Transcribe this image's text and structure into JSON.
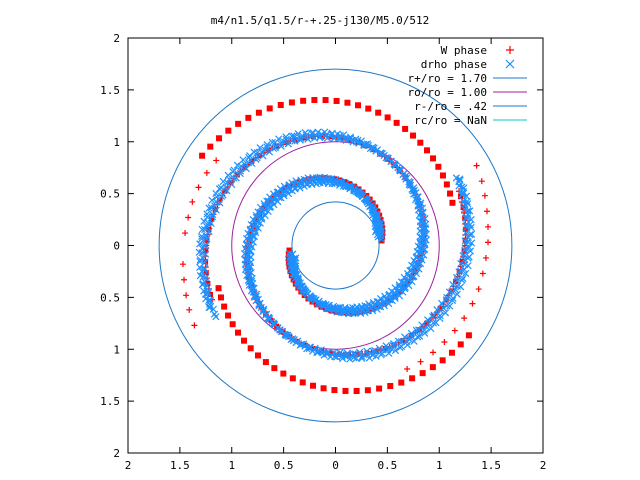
{
  "chart_data": {
    "type": "scatter",
    "title": "m4/n1.5/q1.5/r-+.25-j130/M5.0/512",
    "xlabel": "",
    "ylabel": "",
    "xlim": [
      -2,
      2
    ],
    "ylim": [
      -2,
      2
    ],
    "xticks": [
      -2,
      -1.5,
      -1,
      -0.5,
      0,
      0.5,
      1,
      1.5,
      2
    ],
    "yticks": [
      -2,
      -1.5,
      -1,
      -0.5,
      0,
      0.5,
      1,
      1.5,
      2
    ],
    "xtick_labels": [
      "2",
      "1.5",
      "1",
      "0.5",
      "0",
      "0.5",
      "1",
      "1.5",
      "2"
    ],
    "ytick_labels": [
      "2",
      "1.5",
      "1",
      "0.5",
      "0",
      "0.5",
      "1",
      "1.5",
      "2"
    ],
    "grid": false,
    "legend_position": "top-right",
    "series": [
      {
        "name": "W phase",
        "marker": "plus",
        "color": "#ff0000",
        "spiral_arms": 2,
        "points": [
          [
            1.36,
            0.77
          ],
          [
            1.41,
            0.62
          ],
          [
            1.44,
            0.48
          ],
          [
            1.46,
            0.33
          ],
          [
            1.47,
            0.18
          ],
          [
            1.47,
            0.03
          ],
          [
            1.45,
            -0.12
          ],
          [
            1.42,
            -0.27
          ],
          [
            1.38,
            -0.42
          ],
          [
            1.32,
            -0.56
          ],
          [
            1.24,
            -0.7
          ],
          [
            1.15,
            -0.82
          ],
          [
            1.05,
            -0.93
          ],
          [
            0.94,
            -1.03
          ],
          [
            0.82,
            -1.12
          ],
          [
            0.69,
            -1.19
          ],
          [
            -1.36,
            -0.77
          ],
          [
            -1.41,
            -0.62
          ],
          [
            -1.44,
            -0.48
          ],
          [
            -1.46,
            -0.33
          ],
          [
            -1.47,
            -0.18
          ],
          [
            -1.45,
            0.12
          ],
          [
            -1.42,
            0.27
          ],
          [
            -1.38,
            0.42
          ],
          [
            -1.32,
            0.56
          ],
          [
            -1.24,
            0.7
          ],
          [
            -1.15,
            0.82
          ]
        ]
      },
      {
        "name": "drho phase",
        "marker": "cross",
        "color": "#1e90ff",
        "spiral_arms": 2,
        "points": [
          [
            0.2,
            0.1
          ],
          [
            0.3,
            0.25
          ],
          [
            0.4,
            0.4
          ],
          [
            0.55,
            0.52
          ],
          [
            0.7,
            0.6
          ],
          [
            0.85,
            0.62
          ],
          [
            -0.2,
            -0.1
          ],
          [
            -0.3,
            -0.25
          ],
          [
            -0.4,
            -0.4
          ],
          [
            -0.55,
            -0.52
          ],
          [
            -0.7,
            -0.6
          ],
          [
            -0.85,
            -0.62
          ]
        ]
      },
      {
        "name": "r+/ro = 1.70",
        "type": "circle",
        "radius": 1.7,
        "color": "#1e78c8"
      },
      {
        "name": "ro/ro = 1.00",
        "type": "circle",
        "radius": 1.0,
        "color": "#a020a0"
      },
      {
        "name": "r-/ro = .42",
        "type": "circle",
        "radius": 0.42,
        "color": "#1e78c8"
      },
      {
        "name": "rc/ro = NaN",
        "type": "circle",
        "radius": null,
        "color": "#00c8c8"
      }
    ]
  }
}
